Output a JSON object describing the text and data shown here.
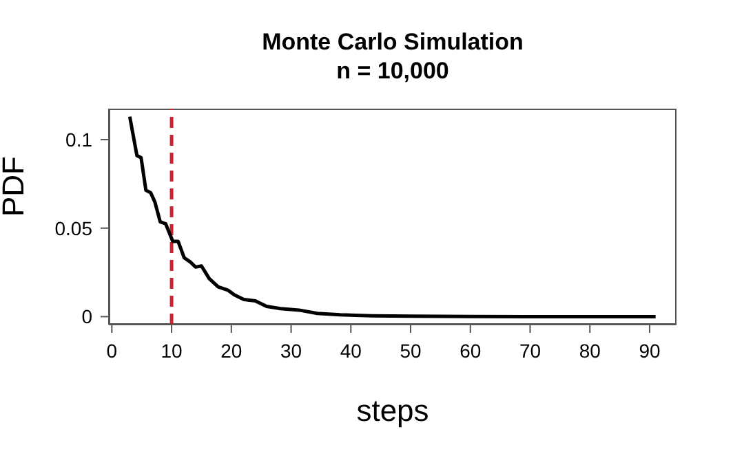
{
  "chart_data": {
    "type": "line",
    "title": "Monte Carlo Simulation",
    "subtitle": "n = 10,000",
    "xlabel": "steps",
    "ylabel": "PDF",
    "x": [
      3.0,
      4.2,
      4.9,
      5.7,
      6.5,
      7.2,
      8.1,
      9.0,
      10.2,
      11.1,
      12.1,
      13.2,
      14.0,
      15.0,
      16.3,
      17.8,
      19.4,
      20.5,
      22.1,
      24.0,
      25.9,
      28.2,
      31.3,
      34.4,
      38.2,
      43.6,
      50,
      60,
      70,
      80,
      91
    ],
    "series": [
      {
        "color": "#000000",
        "values": [
          0.113,
          0.091,
          0.0898,
          0.0714,
          0.07,
          0.0648,
          0.0535,
          0.0525,
          0.0425,
          0.0425,
          0.0333,
          0.0307,
          0.028,
          0.0286,
          0.0215,
          0.0168,
          0.015,
          0.0123,
          0.0097,
          0.0089,
          0.0058,
          0.0045,
          0.0037,
          0.0018,
          0.001,
          0.0005,
          0.0003,
          0.0001,
          0,
          0,
          0
        ]
      }
    ],
    "xlim": [
      -0.5,
      94.5
    ],
    "xticks": [
      0,
      10,
      20,
      30,
      40,
      50,
      60,
      70,
      80,
      90
    ],
    "ylim": [
      -0.0045,
      0.1175
    ],
    "yticks": [
      0,
      0.05,
      0.1
    ],
    "ref_lines": [
      {
        "axis": "x",
        "value": 10,
        "color": "#cc2233",
        "line_style": "dashed"
      }
    ],
    "grid": false,
    "legend": false,
    "marker": "none",
    "line_style": "solid"
  }
}
